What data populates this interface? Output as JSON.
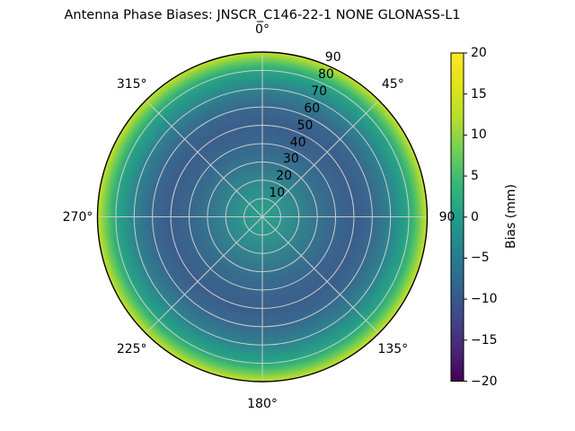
{
  "chart_data": {
    "type": "heatmap",
    "projection": "polar",
    "title": "Antenna Phase Biases: JNSCR_C146-22-1 NONE GLONASS-L1",
    "grid": true,
    "grid_color": "#cccccc",
    "outline_color": "#000000",
    "angular_tick_labels": [
      "0°",
      "45°",
      "90",
      "135°",
      "180°",
      "225°",
      "270°",
      "315°"
    ],
    "angular_tick_degrees": [
      0,
      45,
      90,
      135,
      180,
      225,
      270,
      315
    ],
    "radial_tick_labels": [
      "10",
      "20",
      "30",
      "40",
      "50",
      "60",
      "70",
      "80",
      "90"
    ],
    "radial_tick_values": [
      10,
      20,
      30,
      40,
      50,
      60,
      70,
      80,
      90
    ],
    "radial_range": [
      0,
      90
    ],
    "radial_tick_azimuth_deg": 22.5,
    "radial_profile": [
      {
        "zenith_deg": 0,
        "bias_mm": 1
      },
      {
        "zenith_deg": 10,
        "bias_mm": -0.5
      },
      {
        "zenith_deg": 20,
        "bias_mm": -3.5
      },
      {
        "zenith_deg": 30,
        "bias_mm": -6
      },
      {
        "zenith_deg": 40,
        "bias_mm": -8
      },
      {
        "zenith_deg": 50,
        "bias_mm": -8.5
      },
      {
        "zenith_deg": 60,
        "bias_mm": -7
      },
      {
        "zenith_deg": 70,
        "bias_mm": -4
      },
      {
        "zenith_deg": 80,
        "bias_mm": 2
      },
      {
        "zenith_deg": 85,
        "bias_mm": 7
      },
      {
        "zenith_deg": 90,
        "bias_mm": 13
      }
    ],
    "heatmap_gradient_stops": [
      {
        "offset": 0,
        "color": "#2aa08b"
      },
      {
        "offset": 10,
        "color": "#2d978d"
      },
      {
        "offset": 20,
        "color": "#30898e"
      },
      {
        "offset": 30,
        "color": "#34798e"
      },
      {
        "offset": 40,
        "color": "#376b8e"
      },
      {
        "offset": 50,
        "color": "#3a628d"
      },
      {
        "offset": 57,
        "color": "#3b5e8c"
      },
      {
        "offset": 66,
        "color": "#38688e"
      },
      {
        "offset": 74,
        "color": "#31798e"
      },
      {
        "offset": 81,
        "color": "#2a8d8d"
      },
      {
        "offset": 87,
        "color": "#26a184"
      },
      {
        "offset": 91,
        "color": "#36b376"
      },
      {
        "offset": 94,
        "color": "#5cc560"
      },
      {
        "offset": 97,
        "color": "#94d43f"
      },
      {
        "offset": 100,
        "color": "#c9e128"
      }
    ],
    "colorbar": {
      "label": "Bias (mm)",
      "min": -20,
      "max": 20,
      "tick_labels": [
        "20",
        "15",
        "10",
        "5",
        "0",
        "−5",
        "−10",
        "−15",
        "−20"
      ],
      "tick_values": [
        20,
        15,
        10,
        5,
        0,
        -5,
        -10,
        -15,
        -20
      ],
      "colormap_name": "viridis",
      "colormap_stops": [
        "#440154",
        "#482878",
        "#3e4a89",
        "#31688e",
        "#26828e",
        "#1f9e89",
        "#35b779",
        "#6ece58",
        "#b5de2b",
        "#dfe318",
        "#fde725"
      ]
    }
  }
}
